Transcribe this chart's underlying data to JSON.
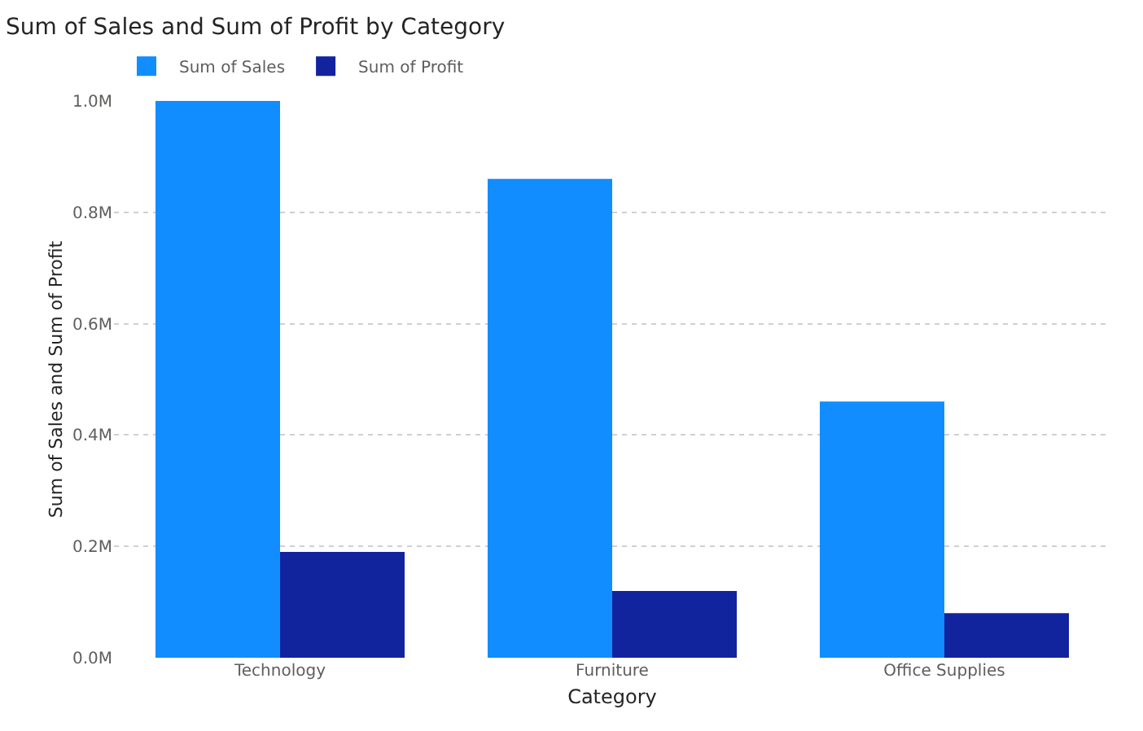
{
  "chart_data": {
    "type": "bar",
    "title": "Sum of Sales and Sum of Profit by Category",
    "xlabel": "Category",
    "ylabel": "Sum of Sales and Sum of Profit",
    "categories": [
      "Technology",
      "Furniture",
      "Office Supplies"
    ],
    "series": [
      {
        "name": "Sum of Sales",
        "color": "#118dff",
        "values": [
          1.0,
          0.86,
          0.46
        ]
      },
      {
        "name": "Sum of Profit",
        "color": "#12239e",
        "values": [
          0.19,
          0.12,
          0.08
        ]
      }
    ],
    "ylim": [
      0,
      1.0
    ],
    "yticks": [
      {
        "value": 0,
        "label": "0.0M"
      },
      {
        "value": 0.2,
        "label": "0.2M"
      },
      {
        "value": 0.4,
        "label": "0.4M"
      },
      {
        "value": 0.6,
        "label": "0.6M"
      },
      {
        "value": 0.8,
        "label": "0.8M"
      },
      {
        "value": 1.0,
        "label": "1.0M"
      }
    ],
    "grid": "y",
    "legend": "top left"
  }
}
